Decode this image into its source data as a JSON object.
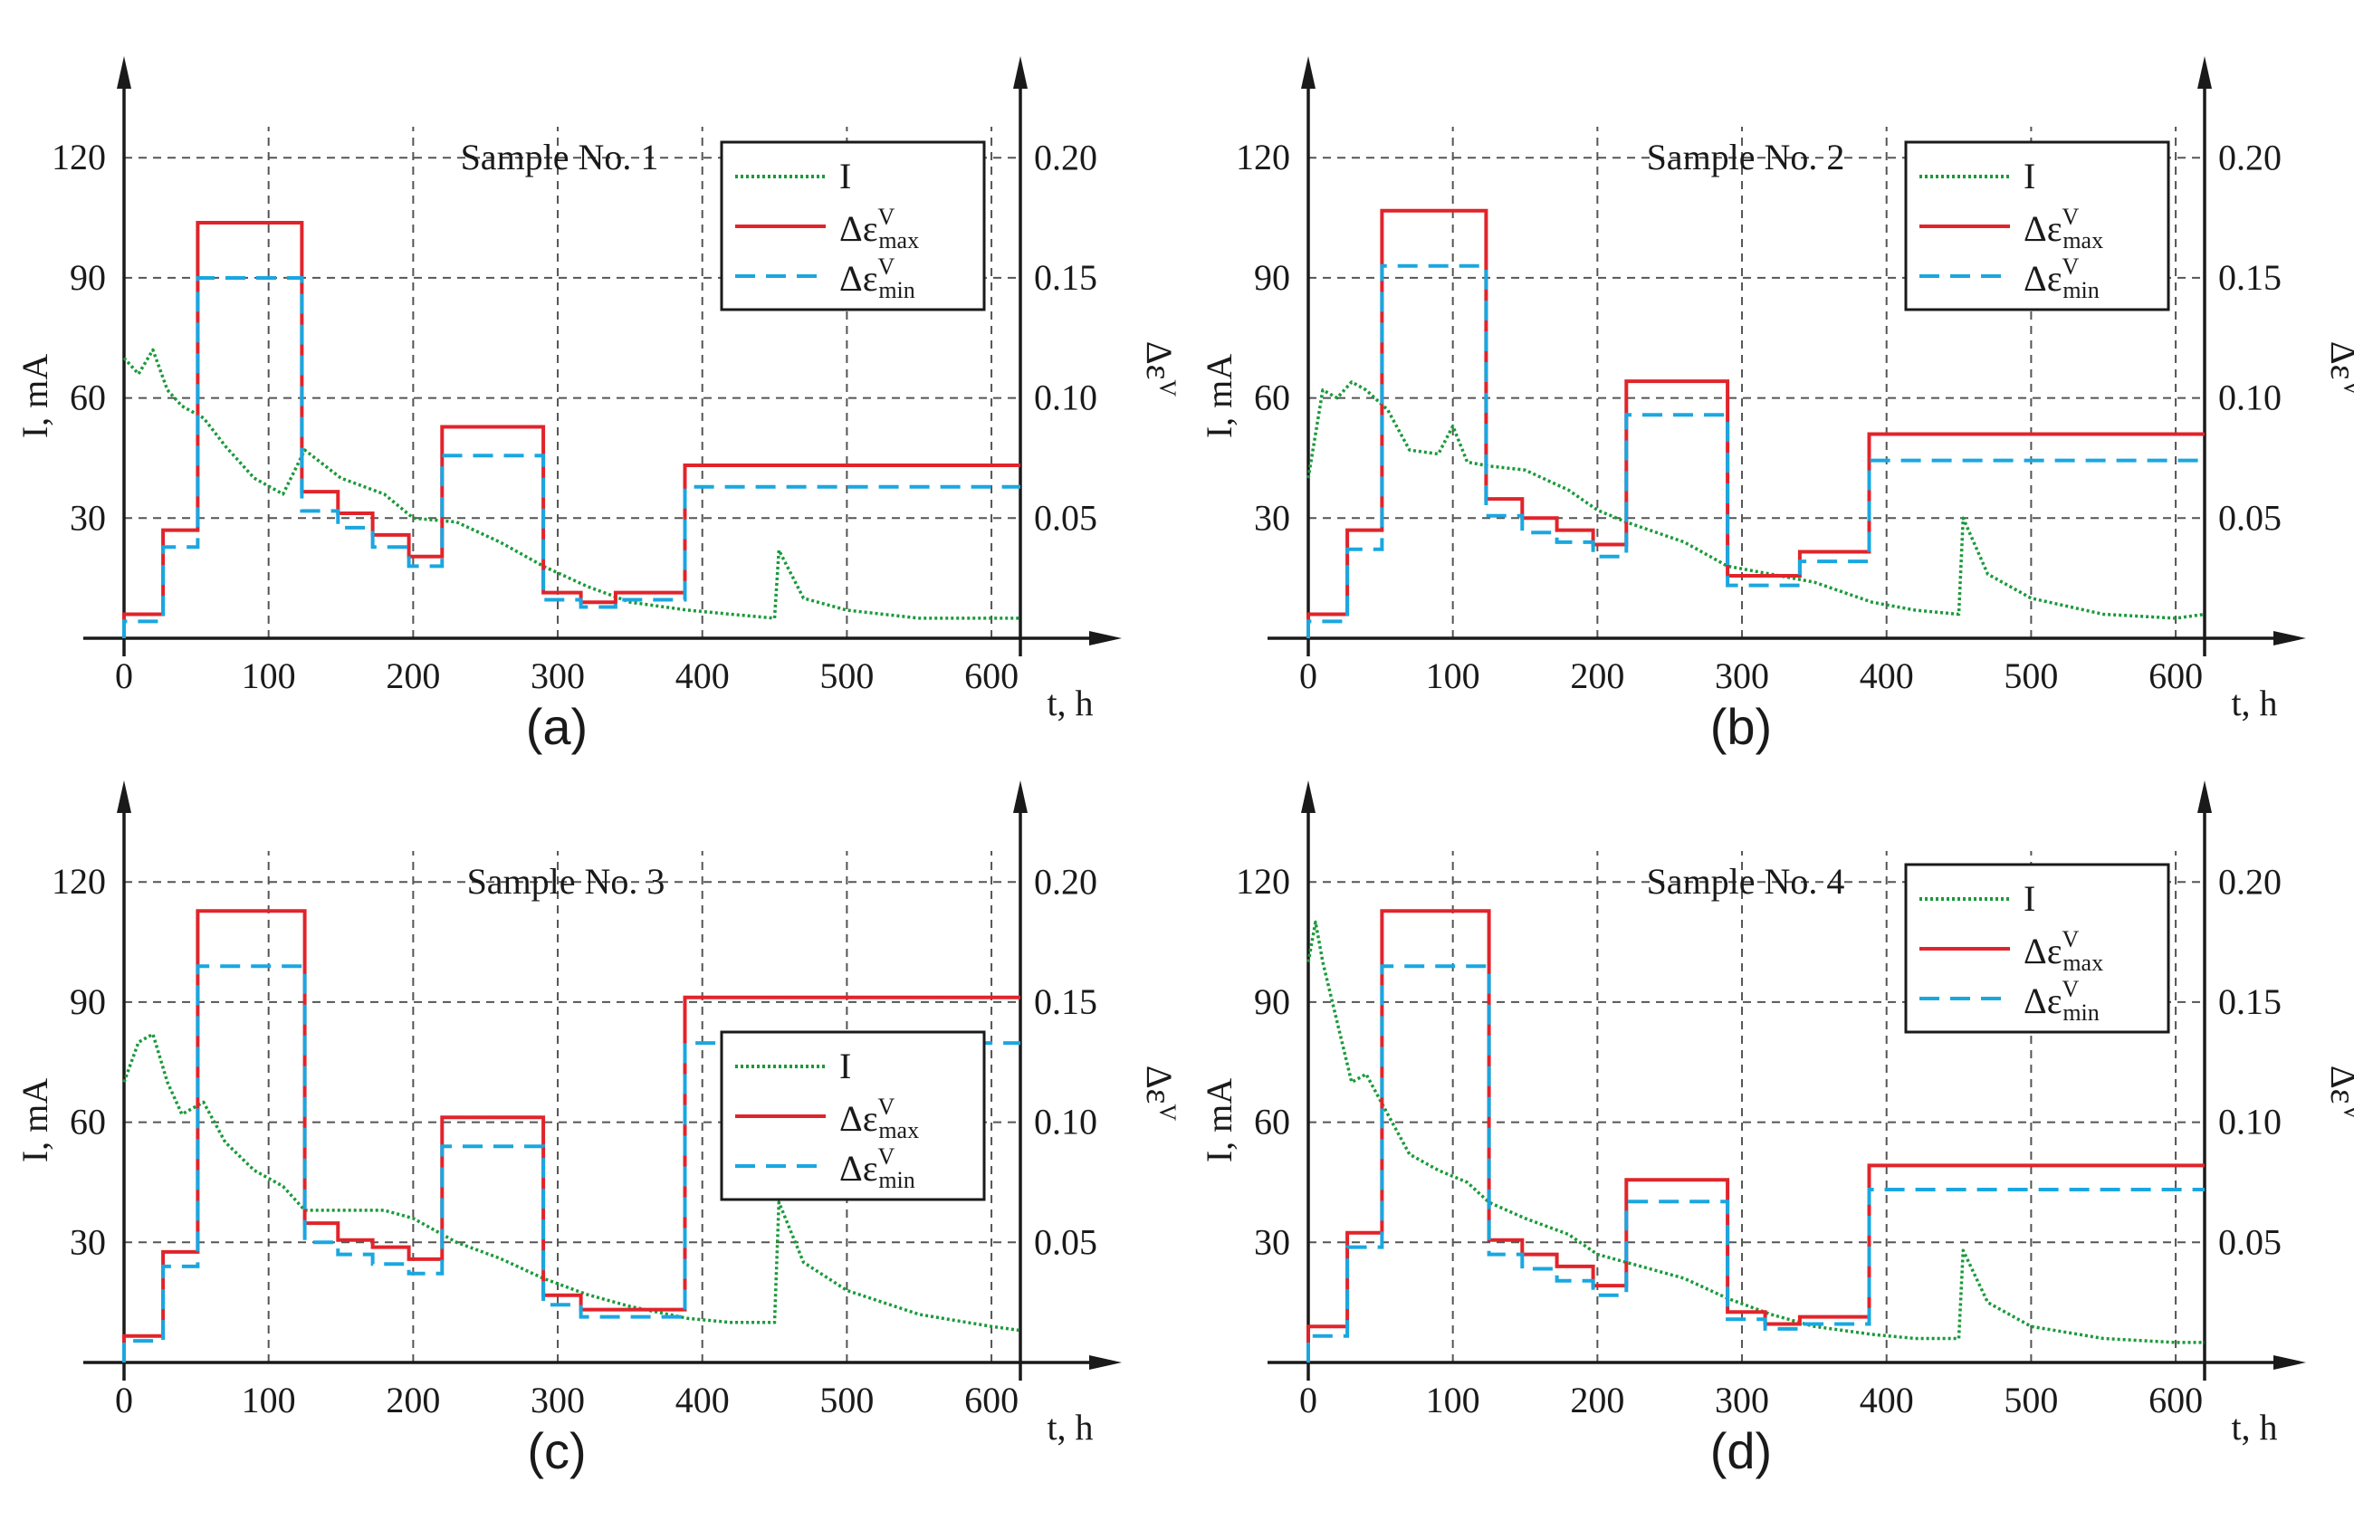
{
  "colors": {
    "current": "#1a9a3a",
    "eps_max": "#e0242b",
    "eps_min": "#1aa7e0",
    "axis": "#1a1a1a",
    "grid": "#555555"
  },
  "legend_labels": {
    "current": "I",
    "eps_max_base": "Δε",
    "eps_max_sup": "V",
    "eps_max_sub": "max",
    "eps_min_base": "Δε",
    "eps_min_sup": "V",
    "eps_min_sub": "min"
  },
  "chart_data": [
    {
      "type": "line",
      "panel_label": "(a)",
      "title": "Sample No. 1",
      "xlabel": "t, h",
      "ylabel_left": "I, mA",
      "ylabel_right": "Δε^V",
      "xlim": [
        0,
        620
      ],
      "ylim_left": [
        0,
        130
      ],
      "ylim_right": [
        0,
        0.2167
      ],
      "xticks": [
        0,
        100,
        200,
        300,
        400,
        500,
        600
      ],
      "yticks_left": [
        30,
        60,
        90,
        120
      ],
      "yticks_right": [
        0.05,
        0.1,
        0.15,
        0.2
      ],
      "grid": true,
      "legend": {
        "shown": true,
        "position": "top-right"
      },
      "series": [
        {
          "name": "I",
          "style": "dotted",
          "x": [
            0,
            10,
            20,
            30,
            40,
            55,
            70,
            90,
            110,
            125,
            150,
            180,
            200,
            230,
            260,
            290,
            320,
            350,
            390,
            420,
            450,
            453,
            470,
            500,
            550,
            620
          ],
          "y": [
            70,
            66,
            72,
            62,
            58,
            55,
            48,
            40,
            36,
            47,
            40,
            36,
            30,
            29,
            24,
            18,
            13,
            9,
            7,
            6,
            5,
            22,
            10,
            7,
            5,
            5
          ]
        },
        {
          "name": "Δε^V_max",
          "style": "solid",
          "segments": [
            [
              0,
              27,
              0.01
            ],
            [
              27,
              51,
              0.045
            ],
            [
              51,
              123,
              0.173
            ],
            [
              123,
              148,
              0.061
            ],
            [
              148,
              172,
              0.052
            ],
            [
              172,
              197,
              0.043
            ],
            [
              197,
              220,
              0.034
            ],
            [
              220,
              290,
              0.088
            ],
            [
              290,
              316,
              0.019
            ],
            [
              316,
              340,
              0.015
            ],
            [
              340,
              388,
              0.019
            ],
            [
              388,
              620,
              0.072
            ]
          ]
        },
        {
          "name": "Δε^V_min",
          "style": "dashed",
          "segments": [
            [
              0,
              27,
              0.007
            ],
            [
              27,
              51,
              0.038
            ],
            [
              51,
              123,
              0.15
            ],
            [
              123,
              148,
              0.053
            ],
            [
              148,
              172,
              0.046
            ],
            [
              172,
              197,
              0.038
            ],
            [
              197,
              220,
              0.03
            ],
            [
              220,
              290,
              0.076
            ],
            [
              290,
              316,
              0.016
            ],
            [
              316,
              340,
              0.013
            ],
            [
              340,
              388,
              0.016
            ],
            [
              388,
              620,
              0.063
            ]
          ]
        }
      ]
    },
    {
      "type": "line",
      "panel_label": "(b)",
      "title": "Sample No. 2",
      "xlabel": "t, h",
      "ylabel_left": "I, mA",
      "ylabel_right": "Δε^V",
      "xlim": [
        0,
        620
      ],
      "ylim_left": [
        0,
        130
      ],
      "ylim_right": [
        0,
        0.2167
      ],
      "xticks": [
        0,
        100,
        200,
        300,
        400,
        500,
        600
      ],
      "yticks_left": [
        30,
        60,
        90,
        120
      ],
      "yticks_right": [
        0.05,
        0.1,
        0.15,
        0.2
      ],
      "grid": true,
      "legend": {
        "shown": true,
        "position": "top-right"
      },
      "series": [
        {
          "name": "I",
          "style": "dotted",
          "x": [
            0,
            10,
            20,
            30,
            40,
            55,
            70,
            90,
            100,
            110,
            125,
            150,
            180,
            200,
            220,
            260,
            290,
            320,
            350,
            390,
            420,
            450,
            453,
            470,
            500,
            550,
            600,
            620
          ],
          "y": [
            40,
            62,
            60,
            64,
            62,
            57,
            47,
            46,
            53,
            44,
            43,
            42,
            37,
            32,
            29,
            24,
            18,
            16,
            14,
            9,
            7,
            6,
            30,
            16,
            10,
            6,
            5,
            6
          ]
        },
        {
          "name": "Δε^V_max",
          "style": "solid",
          "segments": [
            [
              0,
              27,
              0.01
            ],
            [
              27,
              51,
              0.045
            ],
            [
              51,
              123,
              0.178
            ],
            [
              123,
              148,
              0.058
            ],
            [
              148,
              172,
              0.05
            ],
            [
              172,
              197,
              0.045
            ],
            [
              197,
              220,
              0.039
            ],
            [
              220,
              290,
              0.107
            ],
            [
              290,
              340,
              0.026
            ],
            [
              340,
              388,
              0.036
            ],
            [
              388,
              620,
              0.085
            ]
          ]
        },
        {
          "name": "Δε^V_min",
          "style": "dashed",
          "segments": [
            [
              0,
              27,
              0.007
            ],
            [
              27,
              51,
              0.037
            ],
            [
              51,
              123,
              0.155
            ],
            [
              123,
              148,
              0.051
            ],
            [
              148,
              172,
              0.044
            ],
            [
              172,
              197,
              0.04
            ],
            [
              197,
              220,
              0.034
            ],
            [
              220,
              290,
              0.093
            ],
            [
              290,
              340,
              0.022
            ],
            [
              340,
              388,
              0.032
            ],
            [
              388,
              620,
              0.074
            ]
          ]
        }
      ]
    },
    {
      "type": "line",
      "panel_label": "(c)",
      "title": "Sample No. 3",
      "xlabel": "t, h",
      "ylabel_left": "I, mA",
      "ylabel_right": "Δε^V",
      "xlim": [
        0,
        620
      ],
      "ylim_left": [
        0,
        130
      ],
      "ylim_right": [
        0,
        0.2167
      ],
      "xticks": [
        0,
        100,
        200,
        300,
        400,
        500,
        600
      ],
      "yticks_left": [
        30,
        60,
        90,
        120
      ],
      "yticks_right": [
        0.05,
        0.1,
        0.15,
        0.2
      ],
      "grid": true,
      "legend": {
        "shown": true,
        "position": "center-right"
      },
      "series": [
        {
          "name": "I",
          "style": "dotted",
          "x": [
            0,
            10,
            20,
            30,
            40,
            55,
            70,
            90,
            110,
            125,
            150,
            180,
            200,
            230,
            260,
            290,
            320,
            350,
            390,
            420,
            450,
            453,
            470,
            500,
            550,
            600,
            620
          ],
          "y": [
            70,
            80,
            82,
            70,
            62,
            65,
            55,
            48,
            44,
            38,
            38,
            38,
            36,
            30,
            26,
            21,
            17,
            14,
            11,
            10,
            10,
            40,
            25,
            18,
            12,
            9,
            8
          ]
        },
        {
          "name": "Δε^V_max",
          "style": "solid",
          "segments": [
            [
              0,
              27,
              0.011
            ],
            [
              27,
              51,
              0.046
            ],
            [
              51,
              125,
              0.188
            ],
            [
              125,
              148,
              0.058
            ],
            [
              148,
              172,
              0.051
            ],
            [
              172,
              197,
              0.048
            ],
            [
              197,
              220,
              0.043
            ],
            [
              220,
              290,
              0.102
            ],
            [
              290,
              316,
              0.028
            ],
            [
              316,
              388,
              0.022
            ],
            [
              388,
              620,
              0.152
            ]
          ]
        },
        {
          "name": "Δε^V_min",
          "style": "dashed",
          "segments": [
            [
              0,
              27,
              0.009
            ],
            [
              27,
              51,
              0.04
            ],
            [
              51,
              125,
              0.165
            ],
            [
              125,
              148,
              0.05
            ],
            [
              148,
              172,
              0.045
            ],
            [
              172,
              197,
              0.041
            ],
            [
              197,
              220,
              0.037
            ],
            [
              220,
              290,
              0.09
            ],
            [
              290,
              316,
              0.024
            ],
            [
              316,
              388,
              0.019
            ],
            [
              388,
              620,
              0.133
            ]
          ]
        }
      ]
    },
    {
      "type": "line",
      "panel_label": "(d)",
      "title": "Sample No. 4",
      "xlabel": "t, h",
      "ylabel_left": "I, mA",
      "ylabel_right": "Δε^V",
      "xlim": [
        0,
        620
      ],
      "ylim_left": [
        0,
        130
      ],
      "ylim_right": [
        0,
        0.2167
      ],
      "xticks": [
        0,
        100,
        200,
        300,
        400,
        500,
        600
      ],
      "yticks_left": [
        30,
        60,
        90,
        120
      ],
      "yticks_right": [
        0.05,
        0.1,
        0.15,
        0.2
      ],
      "grid": true,
      "legend": {
        "shown": true,
        "position": "top-right"
      },
      "series": [
        {
          "name": "I",
          "style": "dotted",
          "x": [
            0,
            5,
            10,
            20,
            30,
            40,
            55,
            70,
            90,
            110,
            125,
            150,
            180,
            200,
            230,
            260,
            290,
            320,
            350,
            390,
            420,
            450,
            453,
            470,
            500,
            550,
            600,
            620
          ],
          "y": [
            100,
            110,
            100,
            85,
            70,
            72,
            62,
            52,
            48,
            45,
            40,
            36,
            32,
            27,
            24,
            21,
            16,
            12,
            9,
            7,
            6,
            6,
            28,
            15,
            9,
            6,
            5,
            5
          ]
        },
        {
          "name": "Δε^V_max",
          "style": "solid",
          "segments": [
            [
              0,
              27,
              0.015
            ],
            [
              27,
              51,
              0.054
            ],
            [
              51,
              125,
              0.188
            ],
            [
              125,
              148,
              0.051
            ],
            [
              148,
              172,
              0.045
            ],
            [
              172,
              197,
              0.04
            ],
            [
              197,
              220,
              0.032
            ],
            [
              220,
              290,
              0.076
            ],
            [
              290,
              316,
              0.021
            ],
            [
              316,
              340,
              0.016
            ],
            [
              340,
              388,
              0.019
            ],
            [
              388,
              620,
              0.082
            ]
          ]
        },
        {
          "name": "Δε^V_min",
          "style": "dashed",
          "segments": [
            [
              0,
              27,
              0.011
            ],
            [
              27,
              51,
              0.048
            ],
            [
              51,
              125,
              0.165
            ],
            [
              125,
              148,
              0.045
            ],
            [
              148,
              172,
              0.039
            ],
            [
              172,
              197,
              0.034
            ],
            [
              197,
              220,
              0.028
            ],
            [
              220,
              290,
              0.067
            ],
            [
              290,
              316,
              0.018
            ],
            [
              316,
              340,
              0.014
            ],
            [
              340,
              388,
              0.016
            ],
            [
              388,
              620,
              0.072
            ]
          ]
        }
      ]
    }
  ]
}
